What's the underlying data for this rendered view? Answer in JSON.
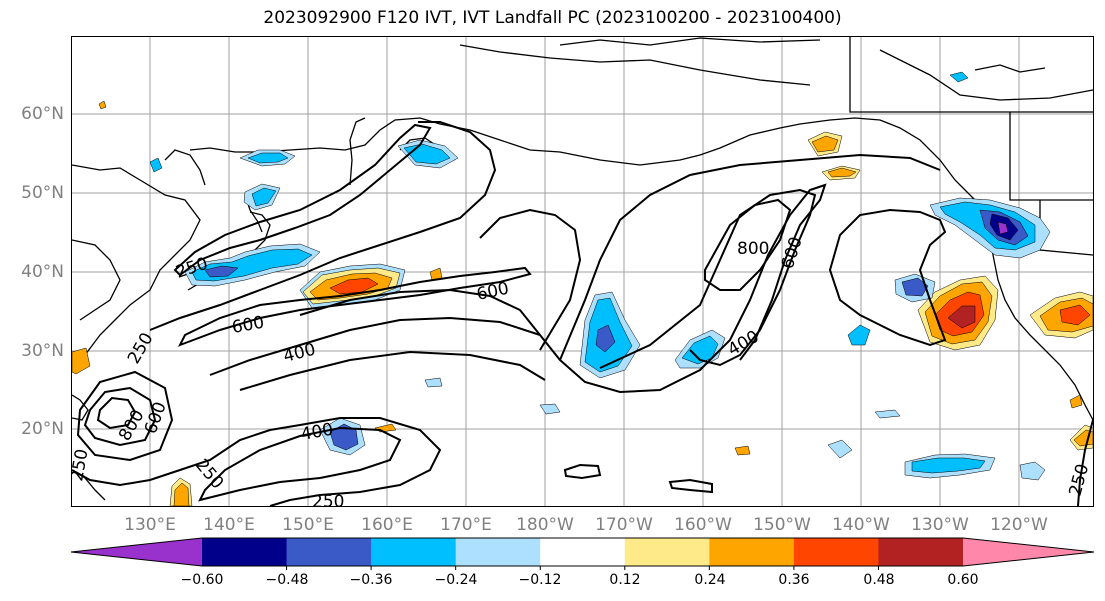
{
  "title": "2023092900 F120 IVT, IVT Landfall PC (2023100200 - 2023100400)",
  "lat_labels": [
    "60°N",
    "50°N",
    "40°N",
    "30°N",
    "20°N"
  ],
  "lon_labels": [
    "130°E",
    "140°E",
    "150°E",
    "160°E",
    "170°E",
    "180°W",
    "170°W",
    "160°W",
    "150°W",
    "140°W",
    "130°W",
    "120°W"
  ],
  "contour_labels": [
    "250",
    "600",
    "600",
    "400",
    "400",
    "800",
    "600",
    "400",
    "250",
    "600",
    "800",
    "250",
    "250",
    "250",
    "250"
  ],
  "colorbar": {
    "colors": [
      "#9932CC",
      "#00008B",
      "#3A5BC7",
      "#00BFFF",
      "#ADDFFF",
      "#FFFFFF",
      "#FFEA8A",
      "#FFA500",
      "#FF4500",
      "#B22222",
      "#FF88AA"
    ],
    "tick_labels": [
      "−0.60",
      "−0.48",
      "−0.36",
      "−0.24",
      "−0.12",
      "0.12",
      "0.24",
      "0.36",
      "0.48",
      "0.60"
    ]
  }
}
